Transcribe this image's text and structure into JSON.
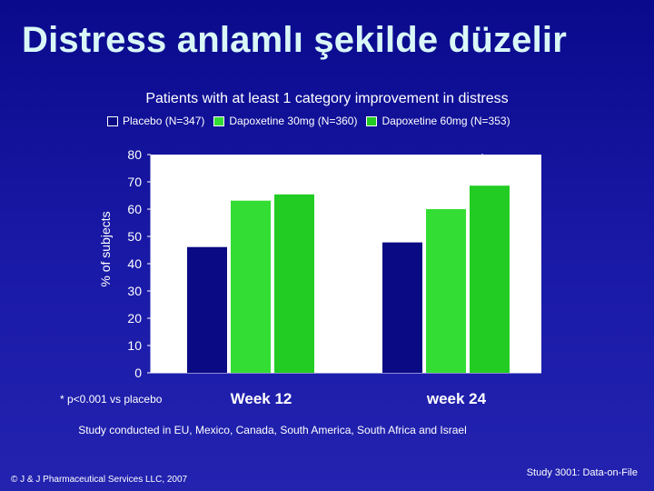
{
  "slide": {
    "title": "Distress anlamlı şekilde düzelir",
    "footnote": "* p<0.001 vs placebo",
    "study_note": "Study conducted in EU, Mexico, Canada, South America, South Africa and Israel",
    "copyright": "© J & J Pharmaceutical Services LLC, 2007",
    "data_file": "Study 3001: Data-on-File"
  },
  "colors": {
    "background": "#0f0f96",
    "plot_area": "#ffffff",
    "placebo": "#0a0a84",
    "dapoxetine_30": "#33dd33",
    "dapoxetine_60": "#22cc22",
    "title": "#d9f7f7"
  },
  "chart_data": {
    "type": "bar",
    "title": "Patients with at least 1 category improvement in distress",
    "ylabel": "% of subjects",
    "xlabel": "",
    "ylim": [
      0,
      80
    ],
    "yticks": [
      0,
      10,
      20,
      30,
      40,
      50,
      60,
      70,
      80
    ],
    "grid": false,
    "legend_position": "top",
    "categories": [
      "Week 12",
      "week 24"
    ],
    "series": [
      {
        "name": "Placebo (N=347)",
        "values": [
          46.1,
          47.8
        ],
        "labels": [
          "46,1",
          "47,8"
        ],
        "significant": [
          false,
          false
        ]
      },
      {
        "name": "Dapoxetine 30mg (N=360)",
        "values": [
          63.1,
          60
        ],
        "labels": [
          "63,1",
          "60"
        ],
        "significant": [
          true,
          true
        ]
      },
      {
        "name": "Dapoxetine 60mg (N=353)",
        "values": [
          65.4,
          68.6
        ],
        "labels": [
          "65,4",
          "68,6"
        ],
        "significant": [
          true,
          true
        ]
      }
    ],
    "significance_marker": "*"
  }
}
